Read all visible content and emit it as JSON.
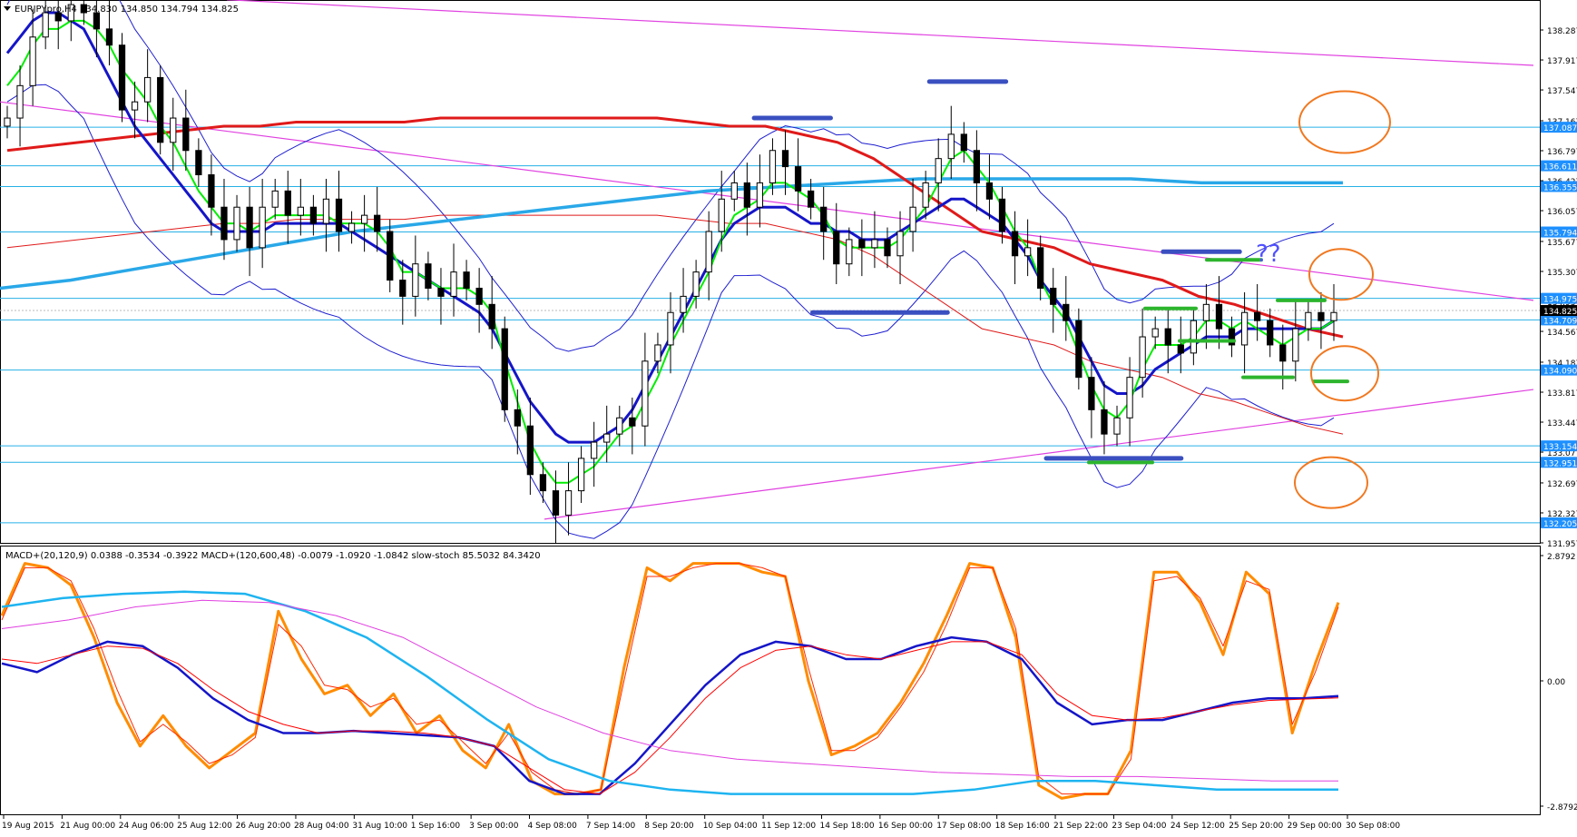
{
  "header": {
    "symbol_info": "EURJPYpro,H4  134.830 134.850 134.794 134.825",
    "indicator_info": "MACD+(20,120,9) 0.0388 -0.3534 -0.3922  MACD+(120,600,48) -0.0079 -1.0920 -1.0842  slow-stoch 85.5032 84.3420"
  },
  "questions": "??",
  "chart_data": [
    {
      "type": "candlestick",
      "symbol": "EURJPYpro",
      "timeframe": "H4",
      "ylim": [
        131.957,
        138.657
      ],
      "y_ticks": [
        138.287,
        137.917,
        137.547,
        137.167,
        136.797,
        136.427,
        136.057,
        135.677,
        135.307,
        134.937,
        134.567,
        134.187,
        133.817,
        133.447,
        133.077,
        132.697,
        132.327,
        131.957
      ],
      "price_levels": [
        {
          "label": "137.087",
          "value": 137.087
        },
        {
          "label": "136.611",
          "value": 136.611
        },
        {
          "label": "136.355",
          "value": 136.355
        },
        {
          "label": "135.794",
          "value": 135.794
        },
        {
          "label": "134.975",
          "value": 134.975
        },
        {
          "label": "134.709",
          "value": 134.709
        },
        {
          "label": "134.090",
          "value": 134.09
        },
        {
          "label": "133.154",
          "value": 133.154
        },
        {
          "label": "132.951",
          "value": 132.951
        },
        {
          "label": "132.205",
          "value": 132.205
        }
      ],
      "current_price": {
        "label": "134.825",
        "value": 134.825
      },
      "x_labels": [
        "19 Aug 2015",
        "21 Aug 00:00",
        "24 Aug 06:00",
        "25 Aug 12:00",
        "26 Aug 20:00",
        "28 Aug 04:00",
        "31 Aug 10:00",
        "1 Sep 16:00",
        "3 Sep 00:00",
        "4 Sep 08:00",
        "7 Sep 14:00",
        "8 Sep 20:00",
        "10 Sep 04:00",
        "11 Sep 12:00",
        "14 Sep 18:00",
        "16 Sep 00:00",
        "17 Sep 08:00",
        "18 Sep 16:00",
        "21 Sep 22:00",
        "23 Sep 04:00",
        "24 Sep 12:00",
        "25 Sep 20:00",
        "29 Sep 00:00",
        "30 Sep 08:00"
      ],
      "close_path": [
        137.2,
        137.6,
        138.2,
        138.5,
        138.4,
        138.6,
        138.5,
        138.3,
        138.1,
        137.3,
        137.4,
        137.7,
        136.9,
        137.2,
        136.8,
        136.5,
        136.1,
        135.7,
        136.1,
        135.6,
        136.1,
        136.3,
        136.0,
        136.1,
        135.9,
        136.2,
        135.8,
        135.9,
        136.0,
        135.8,
        135.2,
        135.0,
        135.4,
        135.1,
        135.0,
        135.3,
        135.1,
        134.9,
        134.6,
        133.6,
        133.4,
        132.8,
        132.6,
        132.3,
        132.6,
        133.0,
        133.2,
        133.3,
        133.5,
        133.4,
        134.2,
        134.4,
        134.8,
        135.0,
        135.3,
        135.8,
        136.2,
        136.4,
        136.1,
        136.4,
        136.8,
        136.6,
        136.3,
        136.1,
        135.8,
        135.4,
        135.7,
        135.6,
        135.7,
        135.5,
        135.8,
        136.1,
        136.4,
        136.7,
        137.0,
        136.8,
        136.4,
        136.2,
        135.8,
        135.5,
        135.6,
        135.1,
        134.9,
        134.7,
        134.0,
        133.6,
        133.3,
        133.5,
        134.0,
        134.5,
        134.6,
        134.4,
        134.3,
        134.7,
        134.9,
        134.6,
        134.4,
        134.8,
        134.7,
        134.4,
        134.2,
        134.6,
        134.8,
        134.7,
        134.8
      ],
      "series": [
        {
          "name": "",
          "color": "#00ee00",
          "values": [
            137.6,
            137.8,
            138.1,
            138.3,
            138.3,
            138.4,
            138.4,
            138.3,
            138.1,
            137.8,
            137.6,
            137.4,
            137.1,
            136.9,
            136.6,
            136.3,
            136.1,
            135.9,
            135.9,
            135.8,
            135.9,
            136.0,
            136.0,
            136.0,
            136.0,
            136.0,
            135.9,
            135.9,
            135.9,
            135.8,
            135.6,
            135.3,
            135.3,
            135.2,
            135.1,
            135.1,
            135.1,
            135.0,
            134.8,
            134.2,
            133.7,
            133.2,
            132.9,
            132.7,
            132.7,
            132.8,
            132.9,
            133.1,
            133.3,
            133.4,
            133.7,
            134.0,
            134.4,
            134.7,
            135.0,
            135.3,
            135.7,
            136.0,
            136.1,
            136.2,
            136.4,
            136.4,
            136.3,
            136.2,
            136.0,
            135.7,
            135.6,
            135.6,
            135.6,
            135.6,
            135.7,
            135.9,
            136.1,
            136.4,
            136.7,
            136.8,
            136.6,
            136.4,
            136.1,
            135.8,
            135.6,
            135.2,
            134.9,
            134.7,
            134.3,
            133.9,
            133.6,
            133.5,
            133.7,
            134.1,
            134.4,
            134.4,
            134.4,
            134.5,
            134.7,
            134.7,
            134.6,
            134.7,
            134.6,
            134.5,
            134.4,
            134.5,
            134.6,
            134.6,
            134.7
          ]
        },
        {
          "name": "",
          "color": "#1515c8",
          "values": [
            138.0,
            138.2,
            138.4,
            138.5,
            138.5,
            138.4,
            138.3,
            138.0,
            137.7,
            137.4,
            137.1,
            136.9,
            136.7,
            136.5,
            136.3,
            136.1,
            135.9,
            135.8,
            135.8,
            135.8,
            135.8,
            135.9,
            135.9,
            135.9,
            135.9,
            135.9,
            135.9,
            135.8,
            135.7,
            135.6,
            135.5,
            135.4,
            135.3,
            135.2,
            135.1,
            135.0,
            134.9,
            134.8,
            134.6,
            134.3,
            134.0,
            133.7,
            133.5,
            133.3,
            133.2,
            133.2,
            133.2,
            133.3,
            133.4,
            133.6,
            133.9,
            134.2,
            134.5,
            134.8,
            135.1,
            135.4,
            135.7,
            135.9,
            136.0,
            136.1,
            136.1,
            136.1,
            136.0,
            135.9,
            135.9,
            135.8,
            135.8,
            135.7,
            135.7,
            135.7,
            135.8,
            135.9,
            136.0,
            136.1,
            136.2,
            136.2,
            136.1,
            136.0,
            135.9,
            135.7,
            135.5,
            135.2,
            135.0,
            134.8,
            134.5,
            134.2,
            133.9,
            133.8,
            133.8,
            133.9,
            134.1,
            134.2,
            134.3,
            134.4,
            134.5,
            134.5,
            134.5,
            134.6,
            134.6,
            134.6,
            134.6,
            134.6,
            134.6,
            134.6,
            134.7
          ]
        },
        {
          "name": "",
          "color": "#e01a1a",
          "values": [
            136.8,
            136.85,
            136.9,
            136.95,
            137.0,
            137.05,
            137.1,
            137.1,
            137.15,
            137.15,
            137.15,
            137.15,
            137.2,
            137.2,
            137.2,
            137.2,
            137.2,
            137.2,
            137.2,
            137.15,
            137.1,
            137.1,
            137.0,
            136.9,
            136.7,
            136.4,
            136.1,
            135.8,
            135.7,
            135.6,
            135.4,
            135.3,
            135.2,
            135.0,
            134.9,
            134.75,
            134.6,
            134.5
          ],
          "x_fraction_span": [
            0.0,
            0.72
          ]
        },
        {
          "name": "",
          "color": "#29a8e8",
          "values": [
            135.1,
            135.2,
            135.35,
            135.5,
            135.65,
            135.8,
            135.9,
            136.0,
            136.1,
            136.2,
            136.3,
            136.35,
            136.4,
            136.45,
            136.45,
            136.45,
            136.45,
            136.4,
            136.4,
            136.4
          ]
        }
      ],
      "annotations": {
        "blue_bars": [
          {
            "from": "11 Sep 12:00",
            "to": "14 Sep 18:00",
            "value": 137.2
          },
          {
            "from": "17 Sep 08:00",
            "to": "18 Sep 16:00",
            "value": 137.65
          },
          {
            "from": "14 Sep 18:00",
            "to": "17 Sep 08:00",
            "value": 134.8
          },
          {
            "from": "24 Sep 12:00",
            "to": "25 Sep 20:00",
            "value": 135.55
          },
          {
            "from": "21 Sep 22:00",
            "to": "24 Sep 12:00",
            "value": 133.0
          }
        ],
        "green_bars": [
          {
            "value": 135.45
          },
          {
            "value": 134.85
          },
          {
            "value": 134.95
          },
          {
            "value": 134.45
          },
          {
            "value": 134.0
          },
          {
            "value": 133.95
          },
          {
            "value": 134.15
          },
          {
            "value": 132.95
          }
        ],
        "circles": 4
      }
    },
    {
      "type": "line",
      "title": "",
      "ylim": [
        -2.8792,
        2.8792
      ],
      "y_ticks": [
        "2.8792",
        "0.00",
        "-2.8792"
      ],
      "series": [
        {
          "name": "",
          "color": "#ff8c00",
          "values": [
            1.5,
            2.7,
            2.6,
            2.2,
            1.0,
            -0.5,
            -1.5,
            -0.8,
            -1.5,
            -2.0,
            -1.6,
            -1.2,
            1.6,
            0.5,
            -0.3,
            -0.1,
            -0.8,
            -0.3,
            -1.2,
            -0.8,
            -1.6,
            -2.0,
            -1.0,
            -2.3,
            -2.6,
            -2.6,
            -2.5,
            0.3,
            2.6,
            2.3,
            2.7,
            2.7,
            2.7,
            2.5,
            2.4,
            0.0,
            -1.7,
            -1.5,
            -1.2,
            -0.5,
            0.4,
            1.5,
            2.7,
            2.6,
            1.0,
            -2.4,
            -2.7,
            -2.6,
            -2.6,
            -1.6,
            2.5,
            2.5,
            1.8,
            0.6,
            2.5,
            2.0,
            -1.2,
            0.4,
            1.8
          ]
        },
        {
          "name": "",
          "color": "#ff2a00",
          "values": [
            1.4,
            2.6,
            2.6,
            2.3,
            1.2,
            -0.2,
            -1.4,
            -1.0,
            -1.4,
            -1.9,
            -1.7,
            -1.3,
            1.3,
            0.8,
            -0.1,
            -0.2,
            -0.6,
            -0.4,
            -1.0,
            -0.9,
            -1.4,
            -1.9,
            -1.2,
            -2.1,
            -2.5,
            -2.6,
            -2.5,
            0.0,
            2.4,
            2.4,
            2.6,
            2.7,
            2.7,
            2.6,
            2.4,
            0.3,
            -1.6,
            -1.6,
            -1.3,
            -0.6,
            0.2,
            1.3,
            2.6,
            2.6,
            1.2,
            -2.2,
            -2.6,
            -2.6,
            -2.6,
            -1.8,
            2.3,
            2.4,
            1.9,
            0.8,
            2.3,
            2.1,
            -1.0,
            0.2,
            1.7
          ]
        },
        {
          "name": "",
          "color": "#1515c8",
          "values": [
            0.4,
            0.2,
            0.6,
            0.9,
            0.8,
            0.3,
            -0.4,
            -0.9,
            -1.2,
            -1.2,
            -1.15,
            -1.2,
            -1.25,
            -1.3,
            -1.5,
            -2.3,
            -2.6,
            -2.6,
            -1.9,
            -1.0,
            -0.1,
            0.6,
            0.9,
            0.8,
            0.5,
            0.5,
            0.8,
            1.0,
            0.9,
            0.5,
            -0.5,
            -1.0,
            -0.9,
            -0.9,
            -0.7,
            -0.5,
            -0.4,
            -0.4,
            -0.35
          ]
        },
        {
          "name": "",
          "color": "#ff0000",
          "values": [
            0.5,
            0.4,
            0.6,
            0.8,
            0.75,
            0.4,
            -0.2,
            -0.7,
            -1.0,
            -1.2,
            -1.15,
            -1.15,
            -1.2,
            -1.3,
            -1.5,
            -2.0,
            -2.5,
            -2.6,
            -2.1,
            -1.3,
            -0.4,
            0.3,
            0.7,
            0.8,
            0.6,
            0.5,
            0.7,
            0.9,
            0.9,
            0.6,
            -0.3,
            -0.8,
            -0.9,
            -0.85,
            -0.7,
            -0.55,
            -0.45,
            -0.42,
            -0.39
          ]
        },
        {
          "name": "",
          "color": "#1eb4f0",
          "values": [
            1.7,
            1.9,
            2.0,
            2.05,
            2.0,
            1.6,
            1.0,
            0.1,
            -0.9,
            -1.8,
            -2.3,
            -2.5,
            -2.6,
            -2.6,
            -2.6,
            -2.6,
            -2.5,
            -2.3,
            -2.3,
            -2.4,
            -2.5,
            -2.5,
            -2.5
          ]
        },
        {
          "name": "",
          "color": "#e040e0",
          "values": [
            1.2,
            1.4,
            1.7,
            1.85,
            1.8,
            1.5,
            1.0,
            0.2,
            -0.6,
            -1.2,
            -1.6,
            -1.8,
            -1.9,
            -2.0,
            -2.1,
            -2.15,
            -2.2,
            -2.2,
            -2.25,
            -2.3,
            -2.3
          ]
        }
      ]
    }
  ]
}
